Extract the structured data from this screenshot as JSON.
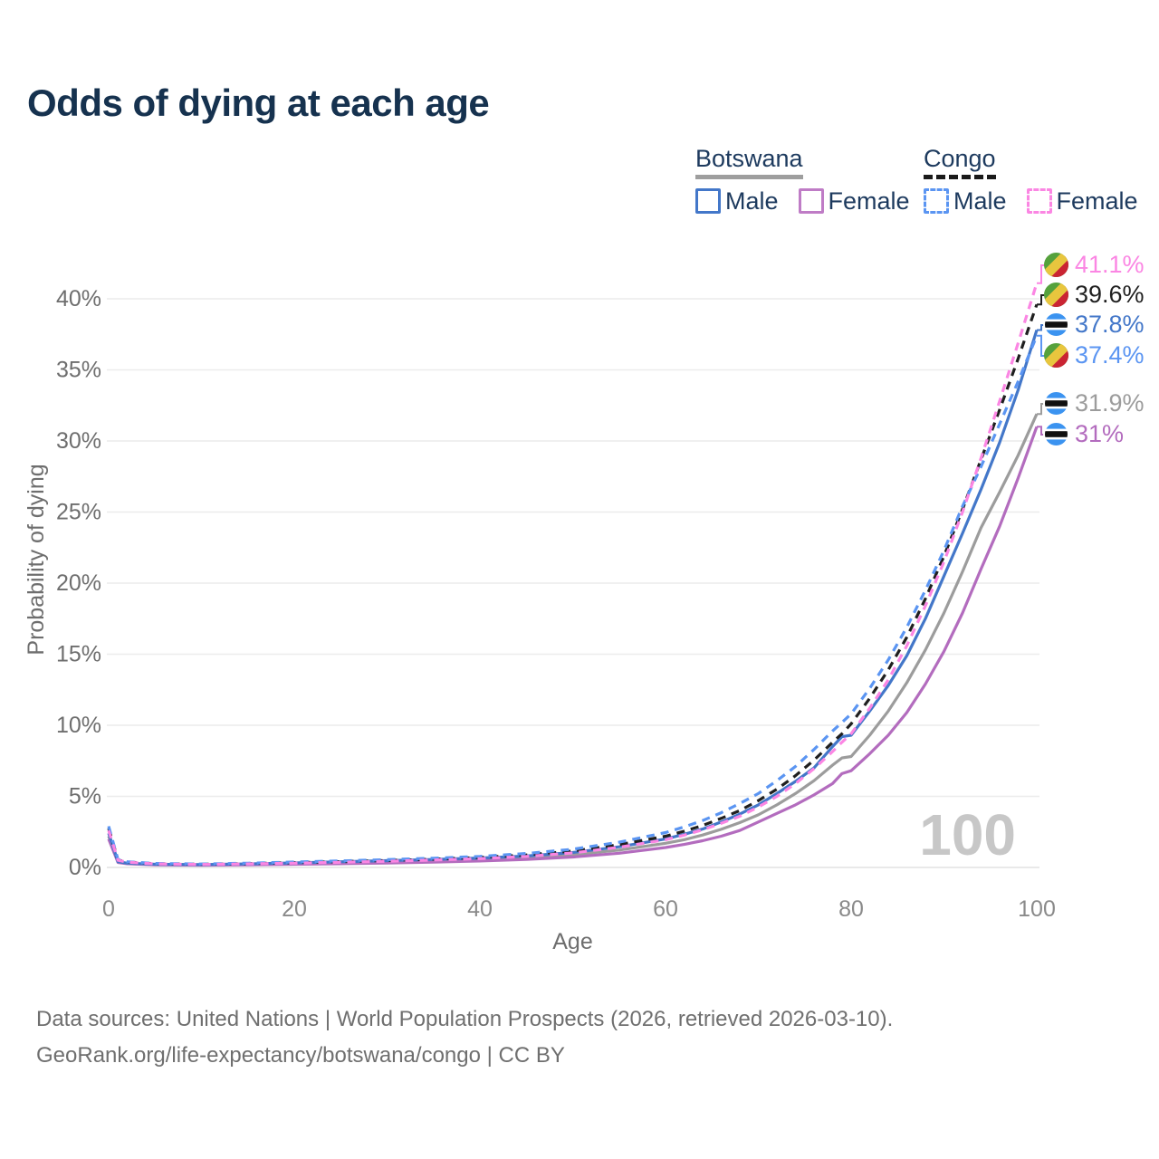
{
  "title": "Odds of dying at each age",
  "watermark": "100",
  "legend": {
    "groups": [
      {
        "title": "Botswana",
        "line_style": "solid",
        "underline_color": "#9e9e9e",
        "items": [
          {
            "label": "Male",
            "color": "#4377c9",
            "dash": false
          },
          {
            "label": "Female",
            "color": "#bf7cc6",
            "dash": false
          }
        ]
      },
      {
        "title": "Congo",
        "line_style": "dashed",
        "underline_color": "#1a1a1a",
        "items": [
          {
            "label": "Male",
            "color": "#5b95f2",
            "dash": true
          },
          {
            "label": "Female",
            "color": "#fb86e3",
            "dash": true
          }
        ]
      }
    ]
  },
  "y_axis": {
    "label": "Probability of dying",
    "tick_labels": [
      "0%",
      "5%",
      "10%",
      "15%",
      "20%",
      "25%",
      "30%",
      "35%",
      "40%"
    ],
    "tick_values": [
      0,
      5,
      10,
      15,
      20,
      25,
      30,
      35,
      40
    ]
  },
  "x_axis": {
    "label": "Age",
    "tick_labels": [
      "0",
      "20",
      "40",
      "60",
      "80",
      "100"
    ],
    "tick_values": [
      0,
      20,
      40,
      60,
      80,
      100
    ]
  },
  "footer": {
    "line1": "Data sources: United Nations | World Population Prospects (2026, retrieved 2026-03-10).",
    "line2": "GeoRank.org/life-expectancy/botswana/congo | CC BY"
  },
  "chart_data": {
    "type": "line",
    "title": "Odds of dying at each age",
    "xlabel": "Age",
    "ylabel": "Probability of dying",
    "xlim": [
      0,
      100
    ],
    "ylim_percent": [
      0,
      42
    ],
    "grid": "horizontal-only",
    "legend_position": "top-right",
    "x": [
      0,
      1,
      2,
      5,
      10,
      15,
      20,
      25,
      30,
      35,
      40,
      45,
      50,
      55,
      60,
      62,
      64,
      66,
      68,
      70,
      72,
      74,
      76,
      78,
      79,
      80,
      82,
      84,
      86,
      88,
      90,
      92,
      94,
      96,
      98,
      100
    ],
    "series": [
      {
        "name": "Congo female",
        "color": "#fb86e3",
        "dash": true,
        "flag": "congo",
        "end_label": "41.1%",
        "values": [
          2.6,
          0.5,
          0.37,
          0.25,
          0.21,
          0.25,
          0.3,
          0.36,
          0.43,
          0.52,
          0.62,
          0.78,
          1.02,
          1.42,
          1.95,
          2.27,
          2.65,
          3.1,
          3.6,
          4.25,
          5.0,
          5.9,
          6.95,
          8.15,
          8.8,
          9.4,
          11.2,
          13.2,
          15.6,
          18.4,
          21.5,
          25.0,
          28.8,
          32.8,
          36.9,
          41.1
        ]
      },
      {
        "name": "Congo both sexes",
        "color": "#1f1f1f",
        "dash": true,
        "flag": "congo",
        "end_label": "39.6%",
        "values": [
          2.75,
          0.52,
          0.38,
          0.26,
          0.22,
          0.27,
          0.34,
          0.41,
          0.49,
          0.58,
          0.7,
          0.88,
          1.15,
          1.6,
          2.2,
          2.55,
          2.95,
          3.45,
          4.0,
          4.7,
          5.5,
          6.45,
          7.55,
          8.8,
          9.4,
          10.1,
          11.9,
          13.9,
          16.2,
          18.9,
          21.9,
          25.2,
          28.7,
          32.2,
          35.8,
          39.6
        ]
      },
      {
        "name": "Botswana male",
        "color": "#4377c9",
        "dash": false,
        "flag": "botswana",
        "end_label": "37.8%",
        "values": [
          2.4,
          0.4,
          0.3,
          0.22,
          0.2,
          0.25,
          0.32,
          0.4,
          0.48,
          0.56,
          0.66,
          0.8,
          1.05,
          1.45,
          2.0,
          2.33,
          2.7,
          3.2,
          3.75,
          4.4,
          5.2,
          6.05,
          7.0,
          8.5,
          9.2,
          9.3,
          11.0,
          12.8,
          14.9,
          17.5,
          20.5,
          23.5,
          26.6,
          29.9,
          33.6,
          37.8
        ]
      },
      {
        "name": "Congo male",
        "color": "#5b95f2",
        "dash": true,
        "flag": "congo",
        "end_label": "37.4%",
        "values": [
          2.9,
          0.55,
          0.4,
          0.28,
          0.24,
          0.3,
          0.38,
          0.46,
          0.55,
          0.65,
          0.78,
          0.98,
          1.28,
          1.78,
          2.45,
          2.85,
          3.3,
          3.85,
          4.5,
          5.2,
          6.1,
          7.1,
          8.3,
          9.6,
          10.2,
          10.8,
          12.6,
          14.6,
          16.9,
          19.5,
          22.3,
          25.4,
          28.2,
          31.2,
          34.2,
          37.4
        ]
      },
      {
        "name": "Botswana both sexes",
        "color": "#9c9c9c",
        "dash": false,
        "flag": "botswana",
        "end_label": "31.9%",
        "values": [
          2.2,
          0.38,
          0.28,
          0.2,
          0.18,
          0.21,
          0.27,
          0.33,
          0.39,
          0.46,
          0.55,
          0.68,
          0.89,
          1.22,
          1.7,
          1.95,
          2.28,
          2.68,
          3.15,
          3.7,
          4.4,
          5.2,
          6.1,
          7.2,
          7.7,
          7.8,
          9.3,
          11.0,
          13.0,
          15.3,
          17.9,
          20.8,
          23.9,
          26.4,
          29.0,
          31.9
        ]
      },
      {
        "name": "Botswana female",
        "color": "#b36cbe",
        "dash": false,
        "flag": "botswana",
        "end_label": "31%",
        "values": [
          2.0,
          0.35,
          0.26,
          0.18,
          0.16,
          0.18,
          0.22,
          0.26,
          0.31,
          0.37,
          0.45,
          0.56,
          0.73,
          1.0,
          1.4,
          1.62,
          1.88,
          2.2,
          2.6,
          3.2,
          3.8,
          4.4,
          5.1,
          5.9,
          6.6,
          6.8,
          8.0,
          9.3,
          10.9,
          12.9,
          15.2,
          17.9,
          21.0,
          24.0,
          27.4,
          31.0
        ]
      }
    ]
  }
}
